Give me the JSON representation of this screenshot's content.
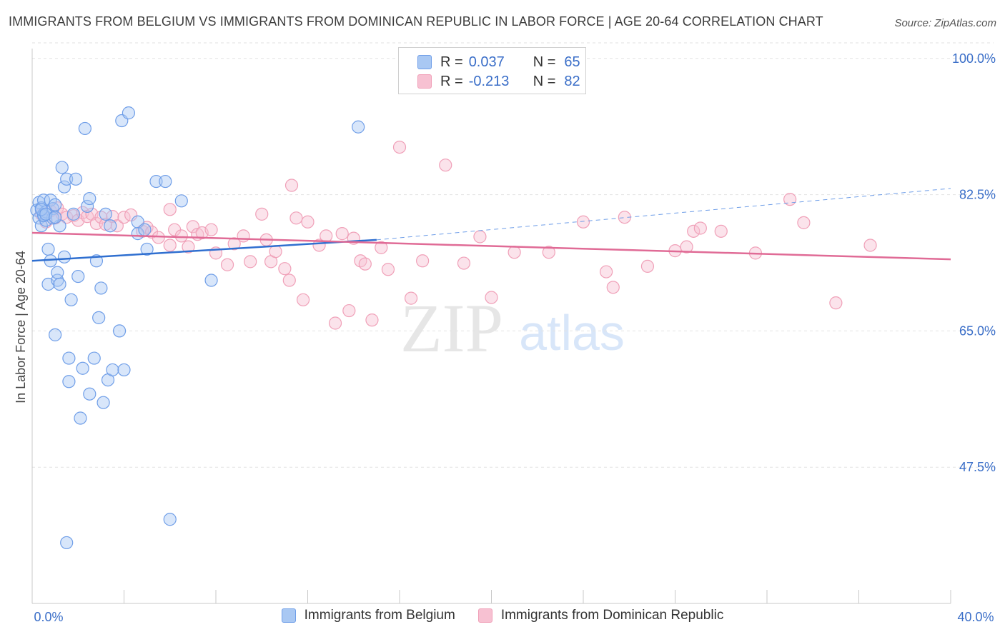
{
  "title": "IMMIGRANTS FROM BELGIUM VS IMMIGRANTS FROM DOMINICAN REPUBLIC IN LABOR FORCE | AGE 20-64 CORRELATION CHART",
  "source": "Source: ZipAtlas.com",
  "watermark": {
    "zip": "ZIP",
    "atlas": "atlas"
  },
  "legend": {
    "rows": [
      {
        "r_label": "R =",
        "r_value": "0.037",
        "n_label": "N =",
        "n_value": "65",
        "color": "#6f9ee8"
      },
      {
        "r_label": "R =",
        "r_value": "-0.213",
        "n_label": "N =",
        "n_value": "82",
        "color": "#f0a0b8"
      }
    ]
  },
  "bottom_legend": {
    "series1": "Immigrants from Belgium",
    "series2": "Immigrants from Dominican Republic"
  },
  "colors": {
    "blue_fill": "#a9c8f3",
    "blue_stroke": "#6f9ee8",
    "blue_line": "#2f6fd0",
    "pink_fill": "#f7c1d2",
    "pink_stroke": "#f0a0b8",
    "pink_line": "#e06b96",
    "axis_label": "#3a6ec8"
  },
  "chart_data": {
    "type": "scatter",
    "title": "IMMIGRANTS FROM BELGIUM VS IMMIGRANTS FROM DOMINICAN REPUBLIC IN LABOR FORCE | AGE 20-64 CORRELATION CHART",
    "xlabel": "",
    "ylabel": "In Labor Force | Age 20-64",
    "xlim": [
      0,
      40
    ],
    "ylim": [
      30,
      102
    ],
    "x_tick_labels": [
      "0.0%",
      "40.0%"
    ],
    "y_ticks": [
      47.5,
      65.0,
      82.5,
      100.0
    ],
    "y_tick_labels": [
      "47.5%",
      "65.0%",
      "82.5%",
      "100.0%"
    ],
    "grid": true,
    "series": [
      {
        "name": "Immigrants from Belgium",
        "r": 0.037,
        "n": 65,
        "trend": {
          "x0": 0.0,
          "y0": 74.0,
          "x1": 15.0,
          "y1": 76.7,
          "dashed_to_x": 40.0,
          "dashed_to_y": 83.3
        },
        "points": [
          [
            0.2,
            80.5
          ],
          [
            0.3,
            81.5
          ],
          [
            0.3,
            79.5
          ],
          [
            0.4,
            80.8
          ],
          [
            0.4,
            78.5
          ],
          [
            0.5,
            80.0
          ],
          [
            0.5,
            81.8
          ],
          [
            0.6,
            79.2
          ],
          [
            0.6,
            80.3
          ],
          [
            0.7,
            75.5
          ],
          [
            0.7,
            71.0
          ],
          [
            0.8,
            74.0
          ],
          [
            0.8,
            81.8
          ],
          [
            0.9,
            80.7
          ],
          [
            1.0,
            64.5
          ],
          [
            1.0,
            81.2
          ],
          [
            1.1,
            71.5
          ],
          [
            1.1,
            72.5
          ],
          [
            1.2,
            71.0
          ],
          [
            1.2,
            78.5
          ],
          [
            1.3,
            86.0
          ],
          [
            1.4,
            74.5
          ],
          [
            1.4,
            83.5
          ],
          [
            1.5,
            84.5
          ],
          [
            1.6,
            58.5
          ],
          [
            1.6,
            61.5
          ],
          [
            1.7,
            69.0
          ],
          [
            1.8,
            80.0
          ],
          [
            1.9,
            84.5
          ],
          [
            2.0,
            72.0
          ],
          [
            2.1,
            53.8
          ],
          [
            2.2,
            60.2
          ],
          [
            2.3,
            91.0
          ],
          [
            2.4,
            81.0
          ],
          [
            2.5,
            82.0
          ],
          [
            2.5,
            56.9
          ],
          [
            2.7,
            61.5
          ],
          [
            2.8,
            74.0
          ],
          [
            2.9,
            66.7
          ],
          [
            3.0,
            70.5
          ],
          [
            3.1,
            55.8
          ],
          [
            3.2,
            80.0
          ],
          [
            3.3,
            58.7
          ],
          [
            3.4,
            78.5
          ],
          [
            3.5,
            60.0
          ],
          [
            3.8,
            65.0
          ],
          [
            3.9,
            92.0
          ],
          [
            4.0,
            60.0
          ],
          [
            4.2,
            93.0
          ],
          [
            4.6,
            79.0
          ],
          [
            4.6,
            77.5
          ],
          [
            5.0,
            75.5
          ],
          [
            4.9,
            78.0
          ],
          [
            5.4,
            84.2
          ],
          [
            6.0,
            40.8
          ],
          [
            6.5,
            81.7
          ],
          [
            7.8,
            71.5
          ],
          [
            14.2,
            91.2
          ],
          [
            1.5,
            37.8
          ],
          [
            5.8,
            84.2
          ],
          [
            0.9,
            79.5
          ],
          [
            0.5,
            79.8
          ],
          [
            0.4,
            80.6
          ],
          [
            0.6,
            80.0
          ],
          [
            1.0,
            79.6
          ]
        ]
      },
      {
        "name": "Immigrants from Dominican Republic",
        "r": -0.213,
        "n": 82,
        "trend": {
          "x0": 0.0,
          "y0": 77.6,
          "x1": 40.0,
          "y1": 74.2
        },
        "points": [
          [
            0.4,
            80.0
          ],
          [
            0.6,
            79.0
          ],
          [
            0.8,
            80.4
          ],
          [
            1.0,
            79.5
          ],
          [
            1.1,
            80.8
          ],
          [
            1.3,
            80.0
          ],
          [
            1.5,
            79.6
          ],
          [
            1.8,
            79.8
          ],
          [
            2.0,
            79.2
          ],
          [
            2.2,
            80.2
          ],
          [
            2.4,
            79.7
          ],
          [
            2.6,
            80.0
          ],
          [
            2.8,
            78.8
          ],
          [
            3.0,
            79.6
          ],
          [
            3.2,
            78.7
          ],
          [
            3.5,
            79.7
          ],
          [
            3.7,
            78.5
          ],
          [
            4.0,
            79.6
          ],
          [
            4.3,
            79.9
          ],
          [
            4.8,
            77.8
          ],
          [
            5.0,
            78.3
          ],
          [
            5.2,
            77.7
          ],
          [
            5.5,
            77.0
          ],
          [
            6.0,
            76.0
          ],
          [
            6.2,
            78.0
          ],
          [
            6.5,
            77.2
          ],
          [
            6.8,
            75.8
          ],
          [
            7.0,
            78.4
          ],
          [
            7.2,
            77.4
          ],
          [
            7.4,
            77.6
          ],
          [
            7.8,
            78.0
          ],
          [
            8.0,
            75.0
          ],
          [
            8.5,
            73.5
          ],
          [
            8.8,
            76.2
          ],
          [
            9.2,
            77.2
          ],
          [
            9.5,
            73.9
          ],
          [
            10.0,
            80.0
          ],
          [
            10.2,
            76.7
          ],
          [
            10.4,
            73.9
          ],
          [
            10.6,
            75.2
          ],
          [
            11.0,
            73.0
          ],
          [
            11.2,
            71.5
          ],
          [
            11.5,
            79.5
          ],
          [
            11.8,
            69.0
          ],
          [
            12.0,
            79.0
          ],
          [
            12.5,
            76.0
          ],
          [
            12.8,
            77.2
          ],
          [
            13.2,
            66.0
          ],
          [
            13.5,
            77.5
          ],
          [
            13.8,
            67.6
          ],
          [
            14.0,
            76.9
          ],
          [
            14.3,
            74.0
          ],
          [
            14.5,
            73.6
          ],
          [
            14.8,
            66.4
          ],
          [
            15.2,
            75.7
          ],
          [
            15.5,
            72.9
          ],
          [
            16.0,
            88.6
          ],
          [
            16.5,
            69.2
          ],
          [
            17.0,
            74.0
          ],
          [
            18.0,
            86.3
          ],
          [
            18.8,
            73.7
          ],
          [
            19.5,
            77.1
          ],
          [
            20.0,
            69.3
          ],
          [
            21.0,
            75.1
          ],
          [
            22.5,
            75.1
          ],
          [
            24.0,
            79.0
          ],
          [
            25.0,
            72.6
          ],
          [
            25.3,
            70.6
          ],
          [
            25.8,
            79.6
          ],
          [
            26.8,
            73.3
          ],
          [
            28.0,
            75.3
          ],
          [
            28.5,
            75.8
          ],
          [
            28.8,
            77.8
          ],
          [
            29.1,
            78.2
          ],
          [
            30.0,
            77.8
          ],
          [
            31.5,
            75.0
          ],
          [
            33.0,
            81.9
          ],
          [
            33.6,
            78.9
          ],
          [
            35.0,
            68.6
          ],
          [
            36.5,
            76.0
          ],
          [
            11.3,
            83.7
          ],
          [
            6.0,
            80.6
          ]
        ]
      }
    ]
  }
}
